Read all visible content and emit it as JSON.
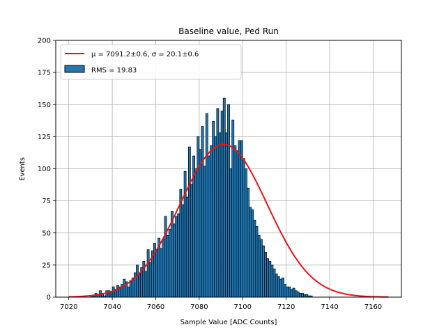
{
  "chart_data": {
    "type": "bar",
    "title": "Baseline value, Ped Run",
    "xlabel": "Sample Value [ADC Counts]",
    "ylabel": "Events",
    "xlim": [
      7014,
      7173
    ],
    "ylim": [
      0,
      200
    ],
    "xticks": [
      7020,
      7040,
      7060,
      7080,
      7100,
      7120,
      7140,
      7160
    ],
    "yticks": [
      0,
      25,
      50,
      75,
      100,
      125,
      150,
      175,
      200
    ],
    "grid": true,
    "legend_position": "top-left",
    "bin_width": 1,
    "bins_start": 7030,
    "histogram": {
      "name": "RMS = 19.83",
      "color": "#1f77b4",
      "edge_color": "#000000",
      "values": [
        1,
        1,
        3,
        2,
        5,
        3,
        1,
        5,
        5,
        4,
        8,
        6,
        9,
        8,
        10,
        14,
        12,
        8,
        13,
        15,
        19,
        25,
        18,
        23,
        28,
        20,
        37,
        27,
        36,
        42,
        37,
        46,
        38,
        45,
        63,
        48,
        53,
        67,
        57,
        63,
        65,
        84,
        72,
        98,
        78,
        117,
        88,
        110,
        100,
        125,
        115,
        133,
        102,
        143,
        110,
        118,
        137,
        125,
        147,
        128,
        145,
        155,
        128,
        150,
        100,
        138,
        118,
        114,
        122,
        122,
        108,
        100,
        85,
        70,
        68,
        60,
        55,
        48,
        45,
        40,
        35,
        30,
        28,
        25,
        22,
        18,
        16,
        14,
        15,
        10,
        8,
        8,
        6,
        7,
        5,
        4,
        3,
        3,
        2,
        2,
        1,
        1
      ]
    },
    "fit": {
      "name": "$\\mu = 7091.2\\pm0.6$, $\\sigma = 20.1\\pm0.6$",
      "color": "#ee1111",
      "mu": 7091.2,
      "sigma": 20.1,
      "amplitude": 119,
      "x_range": [
        7020,
        7167
      ]
    },
    "legend": [
      {
        "label_prefix": "μ = 7091.2±0.6, σ = 20.1±0.6",
        "kind": "line"
      },
      {
        "label_prefix": "RMS = 19.83",
        "kind": "patch"
      }
    ]
  }
}
